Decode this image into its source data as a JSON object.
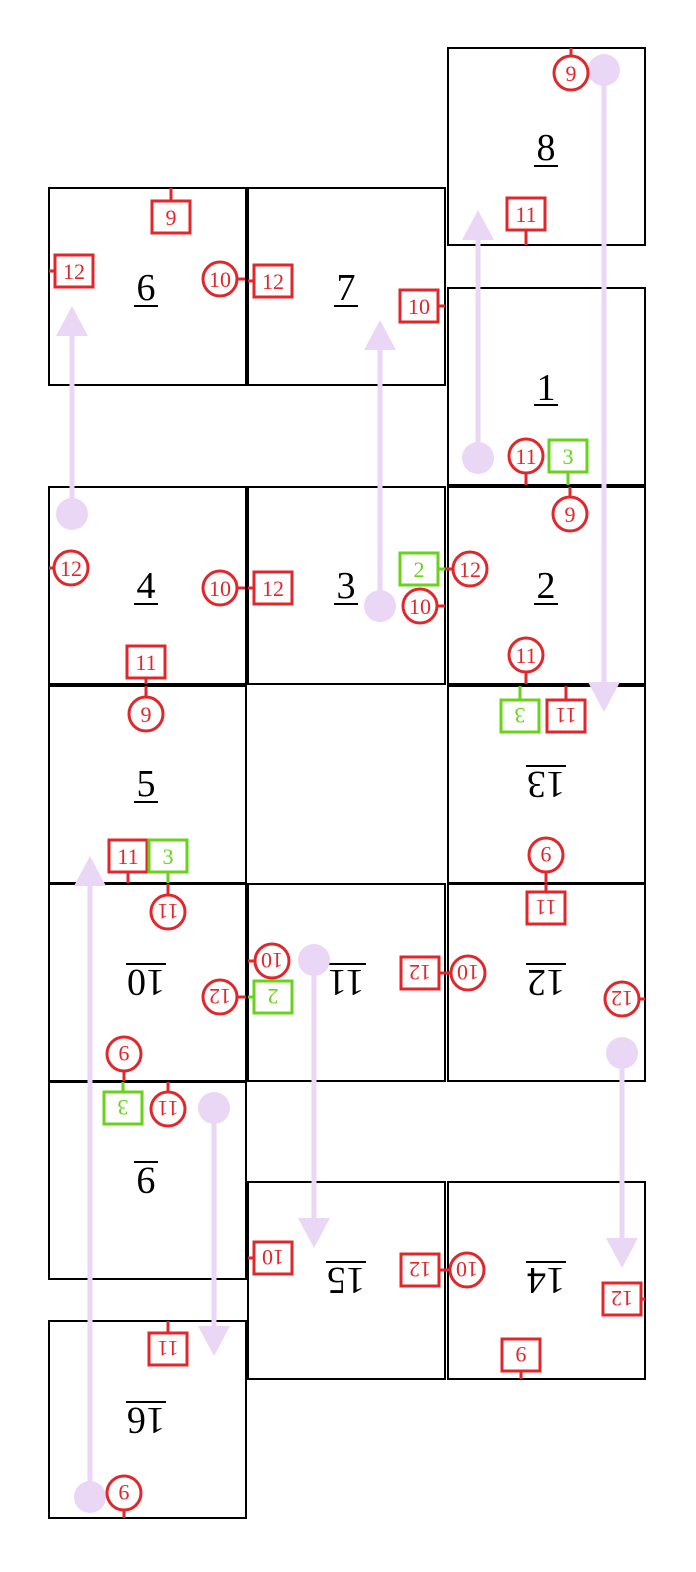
{
  "colors": {
    "edge_tag": "#e0272b",
    "green_tag": "#67d31a",
    "flow_arrow": "#ead7f5",
    "face_border": "#000000"
  },
  "faces": [
    {
      "label": "1",
      "flipped": false
    },
    {
      "label": "2",
      "flipped": false
    },
    {
      "label": "3",
      "flipped": false
    },
    {
      "label": "4",
      "flipped": false
    },
    {
      "label": "5",
      "flipped": false
    },
    {
      "label": "6",
      "flipped": false
    },
    {
      "label": "7",
      "flipped": false
    },
    {
      "label": "8",
      "flipped": false
    },
    {
      "label": "9",
      "flipped": true
    },
    {
      "label": "10",
      "flipped": true
    },
    {
      "label": "11",
      "flipped": true
    },
    {
      "label": "12",
      "flipped": true
    },
    {
      "label": "13",
      "flipped": true
    },
    {
      "label": "14",
      "flipped": true
    },
    {
      "label": "15",
      "flipped": true
    },
    {
      "label": "16",
      "flipped": true
    }
  ],
  "tags": [
    {
      "label": "9",
      "shape": "circle",
      "color": "red",
      "flipped": false
    },
    {
      "label": "11",
      "shape": "square",
      "color": "red",
      "flipped": false
    },
    {
      "label": "9",
      "shape": "square",
      "color": "red",
      "flipped": false
    },
    {
      "label": "12",
      "shape": "square",
      "color": "red",
      "flipped": false
    },
    {
      "label": "10",
      "shape": "circle",
      "color": "red",
      "flipped": false
    },
    {
      "label": "12",
      "shape": "square",
      "color": "red",
      "flipped": false
    },
    {
      "label": "10",
      "shape": "square",
      "color": "red",
      "flipped": false
    },
    {
      "label": "11",
      "shape": "circle",
      "color": "red",
      "flipped": false
    },
    {
      "label": "3",
      "shape": "square",
      "color": "green",
      "flipped": false
    },
    {
      "label": "9",
      "shape": "circle",
      "color": "red",
      "flipped": false
    },
    {
      "label": "12",
      "shape": "circle",
      "color": "red",
      "flipped": false
    },
    {
      "label": "10",
      "shape": "circle",
      "color": "red",
      "flipped": false
    },
    {
      "label": "12",
      "shape": "square",
      "color": "red",
      "flipped": false
    },
    {
      "label": "2",
      "shape": "square",
      "color": "green",
      "flipped": false
    },
    {
      "label": "12",
      "shape": "circle",
      "color": "red",
      "flipped": false
    },
    {
      "label": "10",
      "shape": "circle",
      "color": "red",
      "flipped": false
    },
    {
      "label": "11",
      "shape": "square",
      "color": "red",
      "flipped": false
    },
    {
      "label": "9",
      "shape": "circle",
      "color": "red",
      "flipped": false
    },
    {
      "label": "11",
      "shape": "circle",
      "color": "red",
      "flipped": false
    },
    {
      "label": "3",
      "shape": "square",
      "color": "green",
      "flipped": true
    },
    {
      "label": "11",
      "shape": "square",
      "color": "red",
      "flipped": true
    },
    {
      "label": "11",
      "shape": "square",
      "color": "red",
      "flipped": false
    },
    {
      "label": "3",
      "shape": "square",
      "color": "green",
      "flipped": false
    },
    {
      "label": "9",
      "shape": "circle",
      "color": "red",
      "flipped": true
    },
    {
      "label": "11",
      "shape": "square",
      "color": "red",
      "flipped": true
    },
    {
      "label": "11",
      "shape": "circle",
      "color": "red",
      "flipped": true
    },
    {
      "label": "10",
      "shape": "circle",
      "color": "red",
      "flipped": true
    },
    {
      "label": "12",
      "shape": "circle",
      "color": "red",
      "flipped": true
    },
    {
      "label": "2",
      "shape": "square",
      "color": "green",
      "flipped": true
    },
    {
      "label": "10",
      "shape": "circle",
      "color": "red",
      "flipped": true
    },
    {
      "label": "12",
      "shape": "square",
      "color": "red",
      "flipped": true
    },
    {
      "label": "12",
      "shape": "circle",
      "color": "red",
      "flipped": true
    },
    {
      "label": "9",
      "shape": "circle",
      "color": "red",
      "flipped": true
    },
    {
      "label": "3",
      "shape": "square",
      "color": "green",
      "flipped": true
    },
    {
      "label": "11",
      "shape": "circle",
      "color": "red",
      "flipped": true
    },
    {
      "label": "10",
      "shape": "square",
      "color": "red",
      "flipped": true
    },
    {
      "label": "10",
      "shape": "circle",
      "color": "red",
      "flipped": true
    },
    {
      "label": "12",
      "shape": "square",
      "color": "red",
      "flipped": true
    },
    {
      "label": "12",
      "shape": "square",
      "color": "red",
      "flipped": true
    },
    {
      "label": "9",
      "shape": "square",
      "color": "red",
      "flipped": true
    },
    {
      "label": "11",
      "shape": "square",
      "color": "red",
      "flipped": true
    },
    {
      "label": "9",
      "shape": "circle",
      "color": "red",
      "flipped": true
    }
  ]
}
